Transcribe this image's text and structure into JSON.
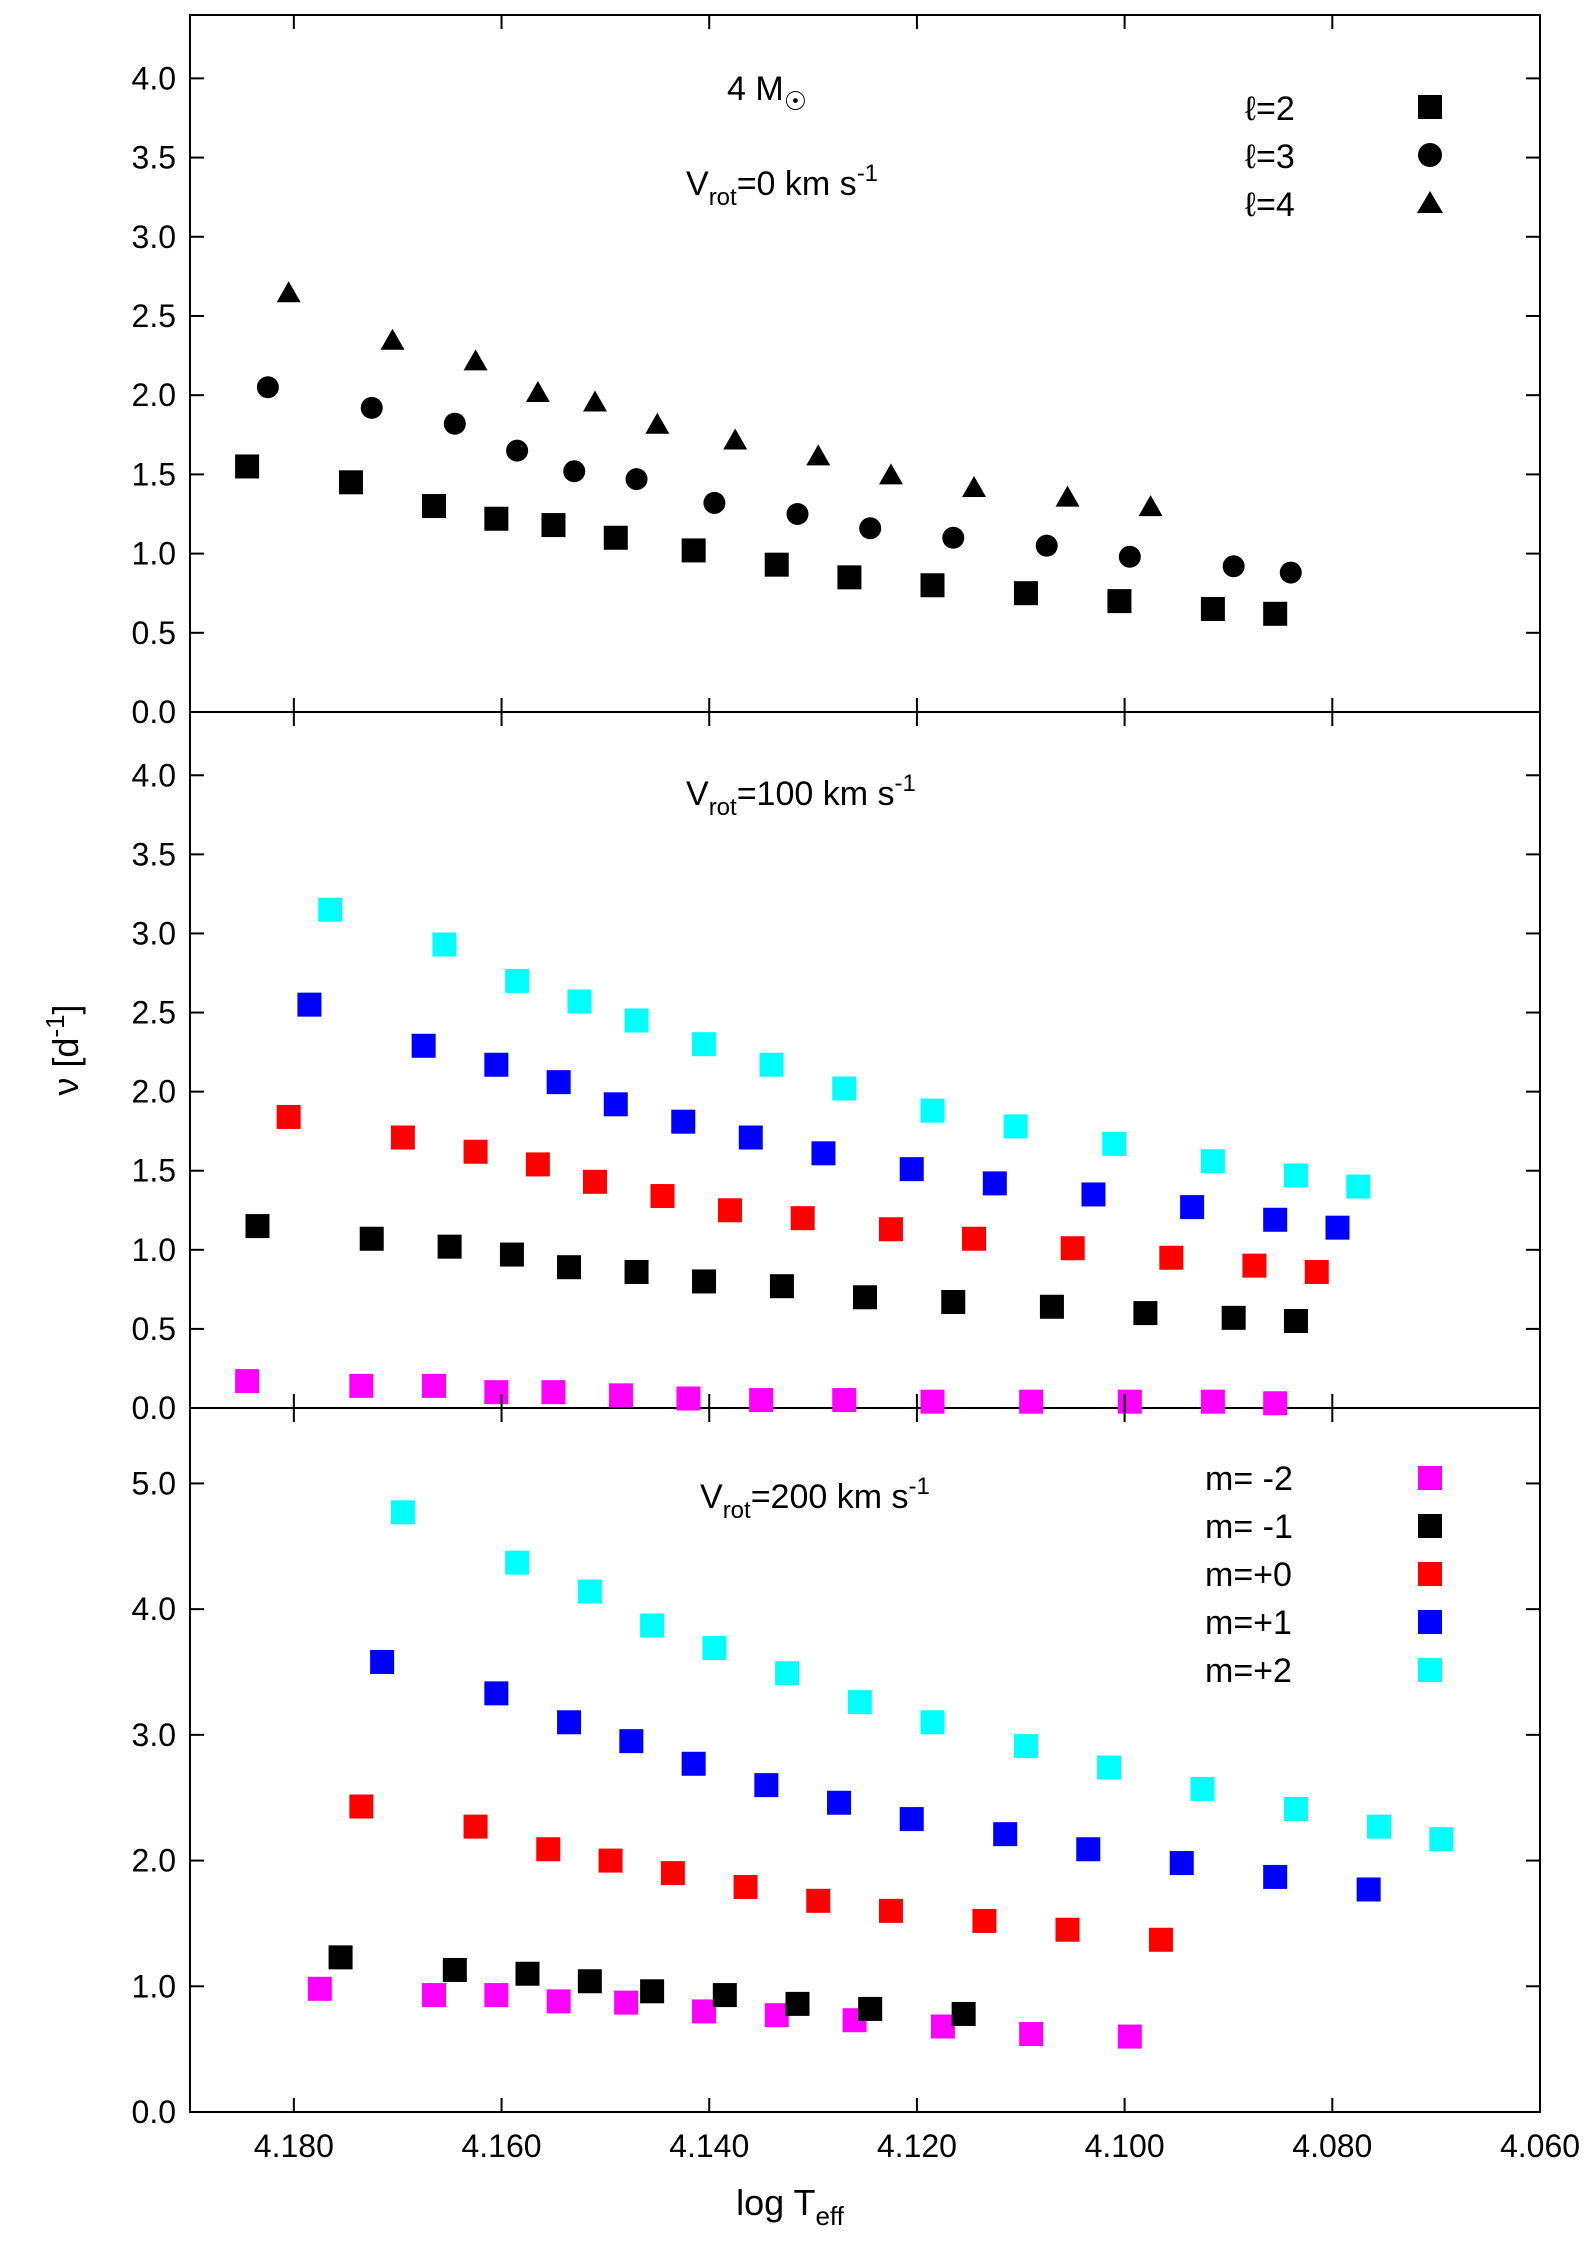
{
  "xlabel": "log T",
  "xlabel_sub": "eff",
  "ylabel": "ν [d",
  "ylabel_sup": "-1",
  "ylabel_end": "]",
  "xticks": [
    "4.180",
    "4.160",
    "4.140",
    "4.120",
    "4.100",
    "4.080",
    "4.060"
  ],
  "colors": {
    "m-2": "#ff00ff",
    "m-1": "#000000",
    "m0": "#ff0000",
    "m1": "#0000ff",
    "m2": "#00ffff",
    "black": "#000000"
  },
  "panels": [
    {
      "annotations": {
        "mass": "4 M",
        "rot_main": "V",
        "rot_sub": "rot",
        "rot_val": "=0 km s",
        "rot_sup": "-1"
      },
      "yticks": [
        "0.0",
        "0.5",
        "1.0",
        "1.5",
        "2.0",
        "2.5",
        "3.0",
        "3.5",
        "4.0"
      ],
      "legend": [
        {
          "label": "ℓ=2",
          "symbol": "square"
        },
        {
          "label": "ℓ=3",
          "symbol": "circle"
        },
        {
          "label": "ℓ=4",
          "symbol": "triangle"
        }
      ]
    },
    {
      "annotations": {
        "rot_main": "V",
        "rot_sub": "rot",
        "rot_val": "=100 km s",
        "rot_sup": "-1"
      },
      "yticks": [
        "0.0",
        "0.5",
        "1.0",
        "1.5",
        "2.0",
        "2.5",
        "3.0",
        "3.5",
        "4.0"
      ],
      "legend": []
    },
    {
      "annotations": {
        "rot_main": "V",
        "rot_sub": "rot",
        "rot_val": "=200 km s",
        "rot_sup": "-1"
      },
      "yticks": [
        "0.0",
        "1.0",
        "2.0",
        "3.0",
        "4.0",
        "5.0"
      ],
      "legend": [
        {
          "label": "m= -2",
          "color": "#ff00ff"
        },
        {
          "label": "m= -1",
          "color": "#000000"
        },
        {
          "label": "m=+0",
          "color": "#ff0000"
        },
        {
          "label": "m=+1",
          "color": "#0000ff"
        },
        {
          "label": "m=+2",
          "color": "#00ffff"
        }
      ]
    }
  ],
  "chart_data": [
    {
      "type": "scatter",
      "xlim": [
        4.19,
        4.06
      ],
      "ylim": [
        0,
        4.4
      ],
      "series": [
        {
          "name": "ℓ=2",
          "symbol": "square",
          "color": "#000000",
          "x": [
            4.1845,
            4.1745,
            4.1665,
            4.1605,
            4.155,
            4.149,
            4.1415,
            4.1335,
            4.1265,
            4.1185,
            4.1095,
            4.1005,
            4.0915,
            4.0855
          ],
          "y": [
            1.55,
            1.45,
            1.3,
            1.22,
            1.18,
            1.1,
            1.02,
            0.93,
            0.85,
            0.8,
            0.75,
            0.7,
            0.65,
            0.62
          ]
        },
        {
          "name": "ℓ=3",
          "symbol": "circle",
          "color": "#000000",
          "x": [
            4.1825,
            4.1725,
            4.1645,
            4.1585,
            4.153,
            4.147,
            4.1395,
            4.1315,
            4.1245,
            4.1165,
            4.1075,
            4.0995,
            4.0895,
            4.084
          ],
          "y": [
            2.05,
            1.92,
            1.82,
            1.65,
            1.52,
            1.47,
            1.32,
            1.25,
            1.16,
            1.1,
            1.05,
            0.98,
            0.92,
            0.88
          ]
        },
        {
          "name": "ℓ=4",
          "symbol": "triangle",
          "color": "#000000",
          "x": [
            4.1805,
            4.1705,
            4.1625,
            4.1565,
            4.151,
            4.145,
            4.1375,
            4.1295,
            4.1225,
            4.1145,
            4.1055,
            4.0975
          ],
          "y": [
            2.65,
            2.35,
            2.22,
            2.02,
            1.96,
            1.82,
            1.72,
            1.62,
            1.5,
            1.42,
            1.36,
            1.3
          ]
        }
      ]
    },
    {
      "type": "scatter",
      "xlim": [
        4.19,
        4.06
      ],
      "ylim": [
        0,
        4.4
      ],
      "series": [
        {
          "name": "m= -2",
          "color": "#ff00ff",
          "x": [
            4.1845,
            4.1735,
            4.1665,
            4.1605,
            4.155,
            4.1485,
            4.142,
            4.135,
            4.127,
            4.1185,
            4.109,
            4.0995,
            4.0915,
            4.0855
          ],
          "y": [
            0.17,
            0.14,
            0.14,
            0.1,
            0.1,
            0.08,
            0.06,
            0.05,
            0.05,
            0.04,
            0.04,
            0.04,
            0.04,
            0.03
          ]
        },
        {
          "name": "m= -1",
          "color": "#000000",
          "x": [
            4.1835,
            4.1725,
            4.165,
            4.159,
            4.1535,
            4.147,
            4.1405,
            4.133,
            4.125,
            4.1165,
            4.107,
            4.098,
            4.0895,
            4.0835
          ],
          "y": [
            1.15,
            1.07,
            1.02,
            0.97,
            0.89,
            0.86,
            0.8,
            0.77,
            0.7,
            0.67,
            0.64,
            0.6,
            0.57,
            0.55
          ]
        },
        {
          "name": "m=+0",
          "color": "#ff0000",
          "x": [
            4.1805,
            4.1695,
            4.1625,
            4.1565,
            4.151,
            4.1445,
            4.138,
            4.131,
            4.1225,
            4.1145,
            4.105,
            4.0955,
            4.0875,
            4.0815
          ],
          "y": [
            1.84,
            1.71,
            1.62,
            1.54,
            1.43,
            1.34,
            1.25,
            1.2,
            1.13,
            1.07,
            1.01,
            0.95,
            0.9,
            0.86
          ]
        },
        {
          "name": "m=+1",
          "color": "#0000ff",
          "x": [
            4.1785,
            4.1675,
            4.1605,
            4.1545,
            4.149,
            4.1425,
            4.136,
            4.129,
            4.1205,
            4.1125,
            4.103,
            4.0935,
            4.0855,
            4.0795
          ],
          "y": [
            2.55,
            2.29,
            2.17,
            2.06,
            1.92,
            1.81,
            1.71,
            1.61,
            1.51,
            1.42,
            1.35,
            1.27,
            1.19,
            1.14
          ]
        },
        {
          "name": "m=+2",
          "color": "#00ffff",
          "x": [
            4.1765,
            4.1655,
            4.1585,
            4.1525,
            4.147,
            4.1405,
            4.134,
            4.127,
            4.1185,
            4.1105,
            4.101,
            4.0915,
            4.0835,
            4.0775
          ],
          "y": [
            3.15,
            2.93,
            2.7,
            2.57,
            2.45,
            2.3,
            2.17,
            2.02,
            1.88,
            1.78,
            1.67,
            1.56,
            1.47,
            1.4
          ]
        }
      ]
    },
    {
      "type": "scatter",
      "xlim": [
        4.19,
        4.06
      ],
      "ylim": [
        0,
        5.6
      ],
      "series": [
        {
          "name": "m= -2",
          "color": "#ff00ff",
          "x": [
            4.1775,
            4.1665,
            4.1605,
            4.1545,
            4.148,
            4.1405,
            4.1335,
            4.126,
            4.1175,
            4.109,
            4.0995
          ],
          "y": [
            0.98,
            0.93,
            0.93,
            0.88,
            0.87,
            0.8,
            0.77,
            0.73,
            0.68,
            0.62,
            0.6
          ]
        },
        {
          "name": "m= -1",
          "color": "#000000",
          "x": [
            4.1755,
            4.1645,
            4.1575,
            4.1515,
            4.1455,
            4.1385,
            4.1315,
            4.1245,
            4.1155
          ],
          "y": [
            1.23,
            1.13,
            1.1,
            1.04,
            0.96,
            0.93,
            0.86,
            0.82,
            0.78
          ]
        },
        {
          "name": "m=+0",
          "color": "#ff0000",
          "x": [
            4.1735,
            4.1625,
            4.1555,
            4.1495,
            4.1435,
            4.1365,
            4.1295,
            4.1225,
            4.1135,
            4.1055,
            4.0965
          ],
          "y": [
            2.43,
            2.27,
            2.09,
            2.0,
            1.9,
            1.79,
            1.68,
            1.6,
            1.52,
            1.45,
            1.37
          ]
        },
        {
          "name": "m=+1",
          "color": "#0000ff",
          "x": [
            4.1715,
            4.1605,
            4.1535,
            4.1475,
            4.1415,
            4.1345,
            4.1275,
            4.1205,
            4.1115,
            4.1035,
            4.0945,
            4.0855,
            4.0765
          ],
          "y": [
            3.58,
            3.33,
            3.1,
            2.95,
            2.77,
            2.6,
            2.46,
            2.33,
            2.21,
            2.09,
            1.98,
            1.87,
            1.77
          ]
        },
        {
          "name": "m=+2",
          "color": "#00ffff",
          "x": [
            4.1695,
            4.1585,
            4.1515,
            4.1455,
            4.1395,
            4.1325,
            4.1255,
            4.1185,
            4.1095,
            4.1015,
            4.0925,
            4.0835,
            4.0755,
            4.0695
          ],
          "y": [
            4.77,
            4.37,
            4.14,
            3.87,
            3.69,
            3.49,
            3.26,
            3.1,
            2.91,
            2.74,
            2.57,
            2.41,
            2.27,
            2.17
          ]
        }
      ]
    }
  ]
}
